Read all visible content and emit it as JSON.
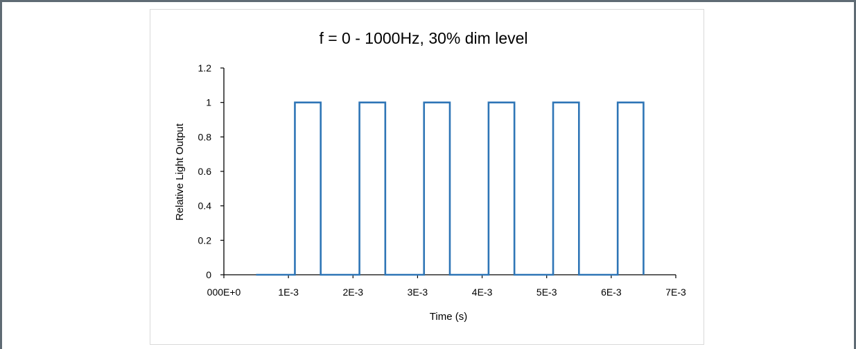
{
  "chart_data": {
    "type": "line",
    "title": "f = 0 - 1000Hz, 30% dim level",
    "xlabel": "Time (s)",
    "ylabel": "Relative Light Output",
    "xlim": [
      0,
      0.007
    ],
    "ylim": [
      0,
      1.2
    ],
    "x_ticks": [
      {
        "value": 0,
        "label": "000E+0"
      },
      {
        "value": 0.001,
        "label": "1E-3"
      },
      {
        "value": 0.002,
        "label": "2E-3"
      },
      {
        "value": 0.003,
        "label": "3E-3"
      },
      {
        "value": 0.004,
        "label": "4E-3"
      },
      {
        "value": 0.005,
        "label": "5E-3"
      },
      {
        "value": 0.006,
        "label": "6E-3"
      },
      {
        "value": 0.007,
        "label": "7E-3"
      }
    ],
    "y_ticks": [
      {
        "value": 0,
        "label": "0"
      },
      {
        "value": 0.2,
        "label": "0.2"
      },
      {
        "value": 0.4,
        "label": "0.4"
      },
      {
        "value": 0.6,
        "label": "0.6"
      },
      {
        "value": 0.8,
        "label": "0.8"
      },
      {
        "value": 1.0,
        "label": "1"
      },
      {
        "value": 1.2,
        "label": "1.2"
      }
    ],
    "grid": false,
    "legend": "none",
    "series": [
      {
        "color": "#2e75b6",
        "x": [
          0.0005,
          0.0011,
          0.0011,
          0.0015,
          0.0015,
          0.0021,
          0.0021,
          0.0025,
          0.0025,
          0.0031,
          0.0031,
          0.0035,
          0.0035,
          0.0041,
          0.0041,
          0.0045,
          0.0045,
          0.0051,
          0.0051,
          0.0055,
          0.0055,
          0.0061,
          0.0061,
          0.0065,
          0.0065
        ],
        "y": [
          0,
          0,
          1,
          1,
          0,
          0,
          1,
          1,
          0,
          0,
          1,
          1,
          0,
          0,
          1,
          1,
          0,
          0,
          1,
          1,
          0,
          0,
          1,
          1,
          0
        ]
      }
    ]
  }
}
